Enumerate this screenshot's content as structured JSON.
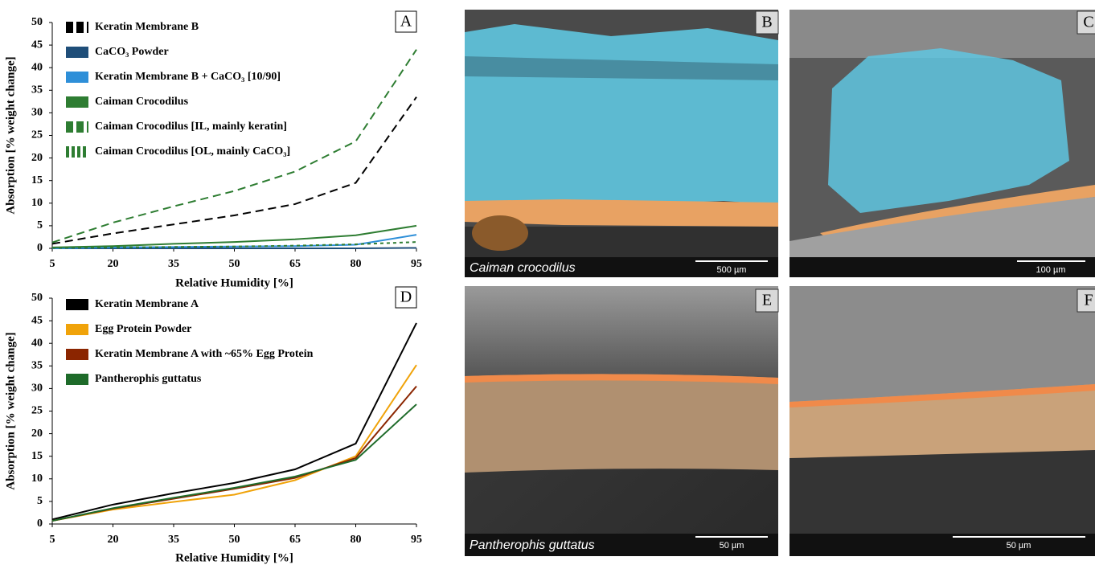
{
  "chart_data": [
    {
      "type": "line",
      "panel_label": "A",
      "x_label": "Relative Humidity [%]",
      "y_label": "Absorption [% weight change]",
      "x": [
        5,
        20,
        35,
        50,
        65,
        80,
        95
      ],
      "xlim": [
        5,
        95
      ],
      "xticks": [
        5,
        20,
        35,
        50,
        65,
        80,
        95
      ],
      "ylim": [
        0,
        50
      ],
      "yticks": [
        0,
        5,
        10,
        15,
        20,
        25,
        30,
        35,
        40,
        45,
        50
      ],
      "series": [
        {
          "name": "Keratin Membrane B",
          "color": "#000000",
          "dash": "10 6",
          "values": [
            1,
            3.3,
            5.3,
            7.3,
            9.8,
            14.5,
            33.5
          ]
        },
        {
          "name": "CaCO₃ Powder",
          "color": "#1f4e79",
          "dash": "none",
          "values": [
            0,
            0,
            0,
            0,
            0,
            0,
            0.1
          ]
        },
        {
          "name": "Keratin Membrane B + CaCO₃ [10/90]",
          "color": "#2e8fd8",
          "dash": "none",
          "values": [
            0,
            0.2,
            0.3,
            0.4,
            0.5,
            0.8,
            3
          ]
        },
        {
          "name": "Caiman Crocodilus",
          "color": "#2e7d32",
          "dash": "none",
          "values": [
            0.2,
            0.5,
            1,
            1.4,
            2,
            2.9,
            5
          ]
        },
        {
          "name": "Caiman Crocodilus [IL, mainly keratin]",
          "color": "#2e7d32",
          "dash": "10 6",
          "values": [
            1.3,
            5.7,
            9.3,
            12.7,
            17,
            23.7,
            44
          ]
        },
        {
          "name": "Caiman Crocodilus [OL, mainly CaCO₃]",
          "color": "#2e7d32",
          "dash": "4 4",
          "values": [
            0.1,
            0.2,
            0.3,
            0.4,
            0.6,
            0.9,
            1.4
          ]
        }
      ]
    },
    {
      "type": "line",
      "panel_label": "D",
      "x_label": "Relative Humidity [%]",
      "y_label": "Absorption [% weight change]",
      "x": [
        5,
        20,
        35,
        50,
        65,
        80,
        95
      ],
      "xlim": [
        5,
        95
      ],
      "xticks": [
        5,
        20,
        35,
        50,
        65,
        80,
        95
      ],
      "ylim": [
        0,
        50
      ],
      "yticks": [
        0,
        5,
        10,
        15,
        20,
        25,
        30,
        35,
        40,
        45,
        50
      ],
      "series": [
        {
          "name": "Keratin Membrane A",
          "color": "#000000",
          "dash": "none",
          "values": [
            1,
            4.3,
            6.8,
            9.1,
            12.1,
            17.8,
            44.5
          ]
        },
        {
          "name": "Egg Protein Powder",
          "color": "#f0a30a",
          "dash": "none",
          "values": [
            0.7,
            3.2,
            4.9,
            6.5,
            9.7,
            15,
            35.2
          ]
        },
        {
          "name": "Keratin Membrane A with ~65% Egg Protein",
          "color": "#8b2500",
          "dash": "none",
          "values": [
            0.7,
            3.4,
            5.6,
            7.8,
            10.2,
            14.6,
            30.5
          ]
        },
        {
          "name": "Pantherophis guttatus",
          "color": "#1e6b2a",
          "dash": "none",
          "values": [
            0.7,
            3.5,
            5.8,
            8,
            10.5,
            14.2,
            26.5
          ]
        }
      ]
    }
  ],
  "panels": [
    {
      "letter": "B",
      "caption": "Caiman crocodilus",
      "scale": "500 µm"
    },
    {
      "letter": "C",
      "scale": "100 µm"
    },
    {
      "letter": "E",
      "caption": "Pantherophis guttatus",
      "scale": "50 µm"
    },
    {
      "letter": "F",
      "scale": "50 µm"
    }
  ]
}
